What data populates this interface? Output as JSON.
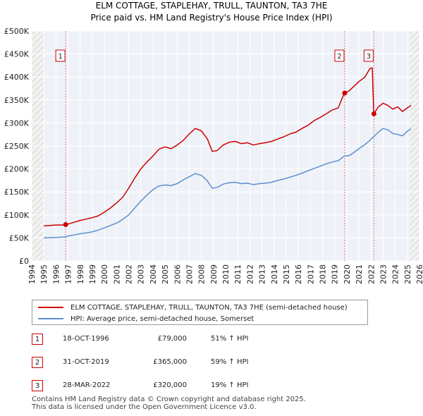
{
  "chart_data": {
    "type": "line",
    "title": "ELM COTTAGE, STAPLEHAY, TRULL, TAUNTON, TA3 7HE",
    "subtitle": "Price paid vs. HM Land Registry's House Price Index (HPI)",
    "xlabel": "",
    "ylabel": "",
    "xlim": [
      1994,
      2026
    ],
    "ylim": [
      0,
      500000
    ],
    "x_ticks": [
      "1994",
      "1995",
      "1996",
      "1997",
      "1998",
      "1999",
      "2000",
      "2001",
      "2002",
      "2003",
      "2004",
      "2005",
      "2006",
      "2007",
      "2008",
      "2009",
      "2010",
      "2011",
      "2012",
      "2013",
      "2014",
      "2015",
      "2016",
      "2017",
      "2018",
      "2019",
      "2020",
      "2021",
      "2022",
      "2023",
      "2024",
      "2025",
      "2026"
    ],
    "y_ticks": [
      {
        "value": 0,
        "label": "£0"
      },
      {
        "value": 50000,
        "label": "£50K"
      },
      {
        "value": 100000,
        "label": "£100K"
      },
      {
        "value": 150000,
        "label": "£150K"
      },
      {
        "value": 200000,
        "label": "£200K"
      },
      {
        "value": 250000,
        "label": "£250K"
      },
      {
        "value": 300000,
        "label": "£300K"
      },
      {
        "value": 350000,
        "label": "£350K"
      },
      {
        "value": 400000,
        "label": "£400K"
      },
      {
        "value": 450000,
        "label": "£450K"
      },
      {
        "value": 500000,
        "label": "£500K"
      }
    ],
    "grid": true,
    "hatched_regions": [
      [
        1994,
        1995
      ],
      [
        2025.2,
        2026
      ]
    ],
    "series": [
      {
        "name": "ELM COTTAGE, STAPLEHAY, TRULL, TAUNTON, TA3 7HE (semi-detached house)",
        "color": "#cc0000",
        "points": [
          [
            1995.0,
            76000
          ],
          [
            1995.5,
            77000
          ],
          [
            1996.0,
            78000
          ],
          [
            1996.5,
            78000
          ],
          [
            1996.8,
            79000
          ],
          [
            1997.0,
            80000
          ],
          [
            1997.5,
            84000
          ],
          [
            1998.0,
            88000
          ],
          [
            1998.5,
            91000
          ],
          [
            1999.0,
            94000
          ],
          [
            1999.5,
            98000
          ],
          [
            2000.0,
            106000
          ],
          [
            2000.5,
            115000
          ],
          [
            2001.0,
            126000
          ],
          [
            2001.5,
            138000
          ],
          [
            2002.0,
            158000
          ],
          [
            2002.5,
            180000
          ],
          [
            2003.0,
            200000
          ],
          [
            2003.5,
            215000
          ],
          [
            2004.0,
            228000
          ],
          [
            2004.5,
            243000
          ],
          [
            2005.0,
            248000
          ],
          [
            2005.5,
            244000
          ],
          [
            2006.0,
            252000
          ],
          [
            2006.5,
            262000
          ],
          [
            2007.0,
            276000
          ],
          [
            2007.5,
            288000
          ],
          [
            2008.0,
            283000
          ],
          [
            2008.5,
            265000
          ],
          [
            2008.9,
            238000
          ],
          [
            2009.3,
            240000
          ],
          [
            2009.8,
            252000
          ],
          [
            2010.3,
            258000
          ],
          [
            2010.8,
            260000
          ],
          [
            2011.3,
            255000
          ],
          [
            2011.8,
            257000
          ],
          [
            2012.3,
            252000
          ],
          [
            2012.8,
            255000
          ],
          [
            2013.3,
            257000
          ],
          [
            2013.8,
            260000
          ],
          [
            2014.3,
            265000
          ],
          [
            2014.8,
            270000
          ],
          [
            2015.3,
            276000
          ],
          [
            2015.8,
            280000
          ],
          [
            2016.3,
            288000
          ],
          [
            2016.8,
            295000
          ],
          [
            2017.3,
            305000
          ],
          [
            2017.8,
            312000
          ],
          [
            2018.3,
            320000
          ],
          [
            2018.8,
            328000
          ],
          [
            2019.3,
            333000
          ],
          [
            2019.8,
            365000
          ],
          [
            2020.2,
            370000
          ],
          [
            2020.6,
            380000
          ],
          [
            2021.0,
            390000
          ],
          [
            2021.5,
            400000
          ],
          [
            2021.9,
            418000
          ],
          [
            2022.1,
            420000
          ],
          [
            2022.23,
            320000
          ],
          [
            2022.6,
            335000
          ],
          [
            2023.0,
            343000
          ],
          [
            2023.4,
            338000
          ],
          [
            2023.8,
            330000
          ],
          [
            2024.2,
            335000
          ],
          [
            2024.6,
            325000
          ],
          [
            2025.0,
            333000
          ],
          [
            2025.3,
            338000
          ]
        ]
      },
      {
        "name": "HPI: Average price, semi-detached house, Somerset",
        "color": "#5b8fd0",
        "points": [
          [
            1995.0,
            50000
          ],
          [
            1995.5,
            50500
          ],
          [
            1996.0,
            51000
          ],
          [
            1996.5,
            51800
          ],
          [
            1996.8,
            52200
          ],
          [
            1997.0,
            54000
          ],
          [
            1997.5,
            56500
          ],
          [
            1998.0,
            59000
          ],
          [
            1998.5,
            61000
          ],
          [
            1999.0,
            63000
          ],
          [
            1999.5,
            67000
          ],
          [
            2000.0,
            72000
          ],
          [
            2000.5,
            77000
          ],
          [
            2001.0,
            82000
          ],
          [
            2001.5,
            90000
          ],
          [
            2002.0,
            100000
          ],
          [
            2002.5,
            115000
          ],
          [
            2003.0,
            130000
          ],
          [
            2003.5,
            143000
          ],
          [
            2004.0,
            155000
          ],
          [
            2004.5,
            163000
          ],
          [
            2005.0,
            165000
          ],
          [
            2005.5,
            164000
          ],
          [
            2006.0,
            168000
          ],
          [
            2006.5,
            176000
          ],
          [
            2007.0,
            183000
          ],
          [
            2007.5,
            190000
          ],
          [
            2008.0,
            186000
          ],
          [
            2008.5,
            174000
          ],
          [
            2008.9,
            158000
          ],
          [
            2009.3,
            160000
          ],
          [
            2009.8,
            167000
          ],
          [
            2010.3,
            170000
          ],
          [
            2010.8,
            171000
          ],
          [
            2011.3,
            168000
          ],
          [
            2011.8,
            169000
          ],
          [
            2012.3,
            166000
          ],
          [
            2012.8,
            168000
          ],
          [
            2013.3,
            169000
          ],
          [
            2013.8,
            171000
          ],
          [
            2014.3,
            175000
          ],
          [
            2014.8,
            178000
          ],
          [
            2015.3,
            182000
          ],
          [
            2015.8,
            186000
          ],
          [
            2016.3,
            191000
          ],
          [
            2016.8,
            196000
          ],
          [
            2017.3,
            201000
          ],
          [
            2017.8,
            206000
          ],
          [
            2018.3,
            211000
          ],
          [
            2018.8,
            215000
          ],
          [
            2019.3,
            218000
          ],
          [
            2019.8,
            228000
          ],
          [
            2020.2,
            229000
          ],
          [
            2020.6,
            236000
          ],
          [
            2021.0,
            244000
          ],
          [
            2021.5,
            253000
          ],
          [
            2021.9,
            262000
          ],
          [
            2022.1,
            268000
          ],
          [
            2022.23,
            270000
          ],
          [
            2022.6,
            280000
          ],
          [
            2023.0,
            288000
          ],
          [
            2023.4,
            285000
          ],
          [
            2023.8,
            277000
          ],
          [
            2024.2,
            275000
          ],
          [
            2024.6,
            272000
          ],
          [
            2025.0,
            282000
          ],
          [
            2025.3,
            287000
          ]
        ]
      }
    ],
    "transactions": [
      {
        "id": "1",
        "x": 1996.8,
        "price": 79000,
        "date": "18-OCT-1996",
        "price_label": "£79,000",
        "hpi_label": "51% ↑ HPI"
      },
      {
        "id": "2",
        "x": 2019.83,
        "price": 365000,
        "date": "31-OCT-2019",
        "price_label": "£365,000",
        "hpi_label": "59% ↑ HPI"
      },
      {
        "id": "3",
        "x": 2022.24,
        "price": 320000,
        "date": "28-MAR-2022",
        "price_label": "£320,000",
        "hpi_label": "19% ↑ HPI"
      }
    ]
  },
  "legend": {
    "price_label": "ELM COTTAGE, STAPLEHAY, TRULL, TAUNTON, TA3 7HE (semi-detached house)",
    "hpi_label": "HPI: Average price, semi-detached house, Somerset"
  },
  "footer": {
    "line1": "Contains HM Land Registry data © Crown copyright and database right 2025.",
    "line2": "This data is licensed under the Open Government Licence v3.0."
  },
  "colors": {
    "price_line": "#cc0000",
    "hpi_line": "#5b8fd0",
    "plot_bg": "#eef2f8",
    "marker_box": "#cc0000"
  }
}
